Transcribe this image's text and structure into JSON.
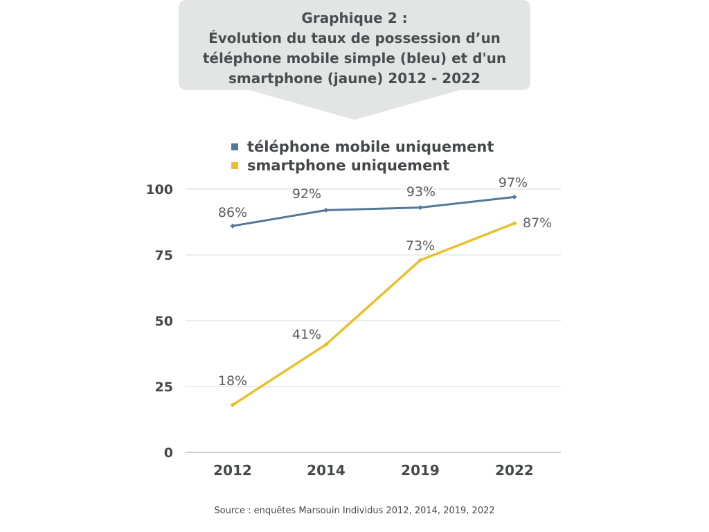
{
  "title": {
    "line1": "Graphique 2 :",
    "line2": "Évolution du taux de possession d’un",
    "line3": "téléphone mobile simple (bleu) et d'un",
    "line4": "smartphone (jaune) 2012 - 2022"
  },
  "source": "Source : enquêtes Marsouin Individus 2012, 2014, 2019, 2022",
  "colors": {
    "bubble": "#e3e4e4",
    "grid": "#d9d9d9",
    "text": "#45484b"
  },
  "chart_data": {
    "type": "line",
    "title": "Graphique 2 : Évolution du taux de possession d’un téléphone mobile simple (bleu) et d'un smartphone (jaune) 2012 - 2022",
    "categories": [
      "2012",
      "2014",
      "2019",
      "2022"
    ],
    "y_ticks": [
      0,
      25,
      50,
      75,
      100
    ],
    "ylim": [
      0,
      100
    ],
    "grid": true,
    "legend_position": "top",
    "series": [
      {
        "name": "téléphone mobile uniquement",
        "color": "#527896",
        "values": [
          86,
          92,
          93,
          97
        ],
        "labels": [
          "86%",
          "92%",
          "93%",
          "97%"
        ]
      },
      {
        "name": "smartphone uniquement",
        "color": "#e8c02e",
        "values": [
          18,
          41,
          73,
          87
        ],
        "labels": [
          "18%",
          "41%",
          "73%",
          "87%"
        ]
      }
    ]
  }
}
